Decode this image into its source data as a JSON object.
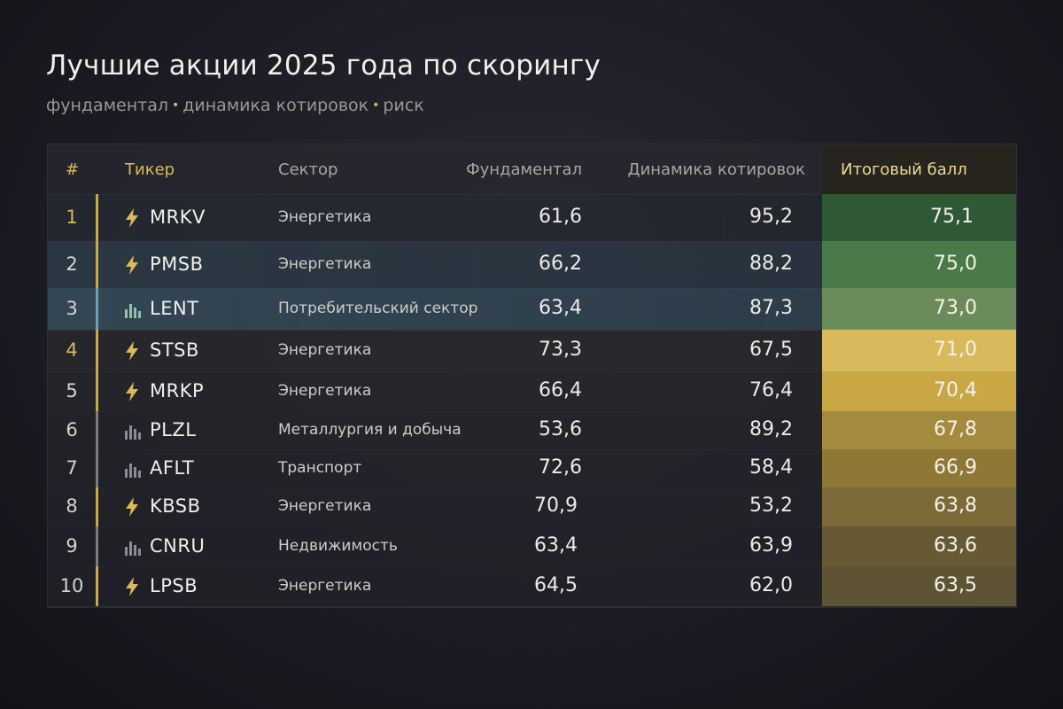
{
  "title": "Лучшие акции 2025 года по скорингу",
  "subtitle": {
    "part1": "фундаментал",
    "part2": "динамика котировок",
    "part3": "риск",
    "separator": "•"
  },
  "colors": {
    "accent": "#d9b95a",
    "score_green_dark": "#2f5a38",
    "score_green": "#4c7a46",
    "score_gold": "#c9a947"
  },
  "chart_data": {
    "type": "table",
    "title": "Лучшие акции 2025 года по скорингу",
    "columns": [
      "#",
      "Тикер",
      "Сектор",
      "Фундаментал",
      "Динамика котировок",
      "Итоговый балл"
    ],
    "rows": [
      {
        "rank": "1",
        "ticker": "MRKV",
        "sector": "Энергетика",
        "icon": "lightning-icon",
        "fund": "61,6",
        "dyn": "95,2",
        "score": "75,1",
        "score_value": 75.1
      },
      {
        "rank": "2",
        "ticker": "PMSB",
        "sector": "Энергетика",
        "icon": "lightning-icon",
        "fund": "66,2",
        "dyn": "88,2",
        "score": "75,0",
        "score_value": 75.0
      },
      {
        "rank": "3",
        "ticker": "LENT",
        "sector": "Потребительский сектор",
        "icon": "bar-chart-icon",
        "fund": "63,4",
        "dyn": "87,3",
        "score": "73,0",
        "score_value": 73.0
      },
      {
        "rank": "4",
        "ticker": "STSB",
        "sector": "Энергетика",
        "icon": "lightning-icon",
        "fund": "73,3",
        "dyn": "67,5",
        "score": "71,0",
        "score_value": 71.0
      },
      {
        "rank": "5",
        "ticker": "MRKP",
        "sector": "Энергетика",
        "icon": "lightning-icon",
        "fund": "66,4",
        "dyn": "76,4",
        "score": "70,4",
        "score_value": 70.4
      },
      {
        "rank": "6",
        "ticker": "PLZL",
        "sector": "Металлургия и добыча",
        "icon": "bar-chart-icon",
        "fund": "53,6",
        "dyn": "89,2",
        "score": "67,8",
        "score_value": 67.8
      },
      {
        "rank": "7",
        "ticker": "AFLT",
        "sector": "Транспорт",
        "icon": "bar-chart-icon",
        "fund": "72,6",
        "dyn": "58,4",
        "score": "66,9",
        "score_value": 66.9
      },
      {
        "rank": "8",
        "ticker": "KBSB",
        "sector": "Энергетика",
        "icon": "lightning-icon",
        "fund": "70,9",
        "dyn": "53,2",
        "score": "63,8",
        "score_value": 63.8
      },
      {
        "rank": "9",
        "ticker": "CNRU",
        "sector": "Недвижимость",
        "icon": "bar-chart-icon",
        "fund": "63,4",
        "dyn": "63,9",
        "score": "63,6",
        "score_value": 63.6
      },
      {
        "rank": "10",
        "ticker": "LPSB",
        "sector": "Энергетика",
        "icon": "lightning-icon",
        "fund": "64,5",
        "dyn": "62,0",
        "score": "63,5",
        "score_value": 63.5
      }
    ]
  }
}
